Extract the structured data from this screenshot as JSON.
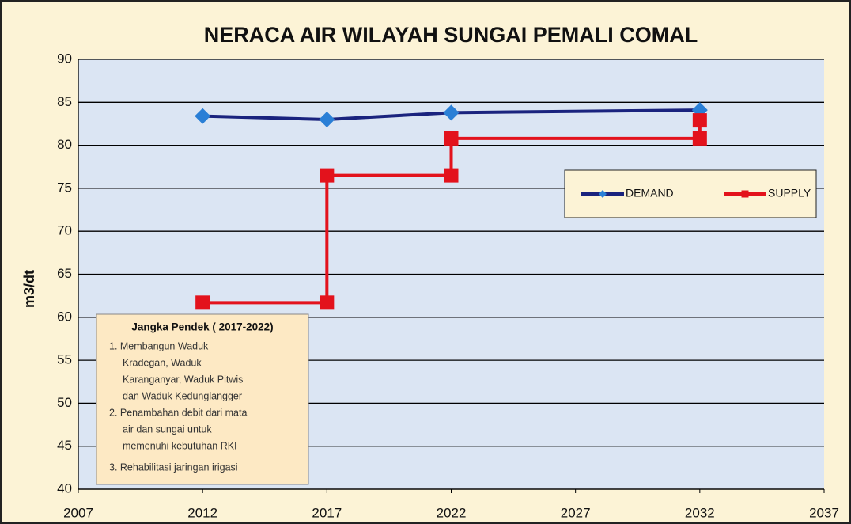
{
  "chart_data": {
    "type": "line",
    "title": "NERACA  AIR WILAYAH SUNGAI PEMALI COMAL",
    "y_label": "m3/dt",
    "series": [
      {
        "name": "DEMAND",
        "color": "#1a237e",
        "marker_color": "#2a7fd6",
        "marker": "diamond",
        "x": [
          2012,
          2017,
          2022,
          2032
        ],
        "values": [
          83.4,
          83.0,
          83.8,
          84.1
        ]
      },
      {
        "name": "SUPPLY",
        "color": "#e3121c",
        "marker_color": "#e3121c",
        "marker": "square",
        "x": [
          2012,
          2017,
          2017,
          2022,
          2022,
          2032,
          2032
        ],
        "values": [
          61.7,
          61.7,
          76.5,
          76.5,
          80.8,
          80.8,
          82.9
        ]
      }
    ],
    "xlim": [
      2007,
      2037
    ],
    "xticks": [
      2007,
      2012,
      2017,
      2022,
      2027,
      2032,
      2037
    ],
    "ylim": [
      40,
      90
    ],
    "yticks": [
      40,
      45,
      50,
      55,
      60,
      65,
      70,
      75,
      80,
      85,
      90
    ],
    "grid": true,
    "annotation": {
      "title": "Jangka Pendek ( 2017-2022)",
      "lines": [
        "1. Membangun Waduk",
        "Kradegan, Waduk",
        "Karanganyar, Waduk Pitwis",
        "dan Waduk Kedunglangger",
        "2. Penambahan debit dari mata",
        "air dan sungai untuk",
        "memenuhi kebutuhan RKI",
        "3. Rehabilitasi jaringan irigasi"
      ]
    }
  }
}
